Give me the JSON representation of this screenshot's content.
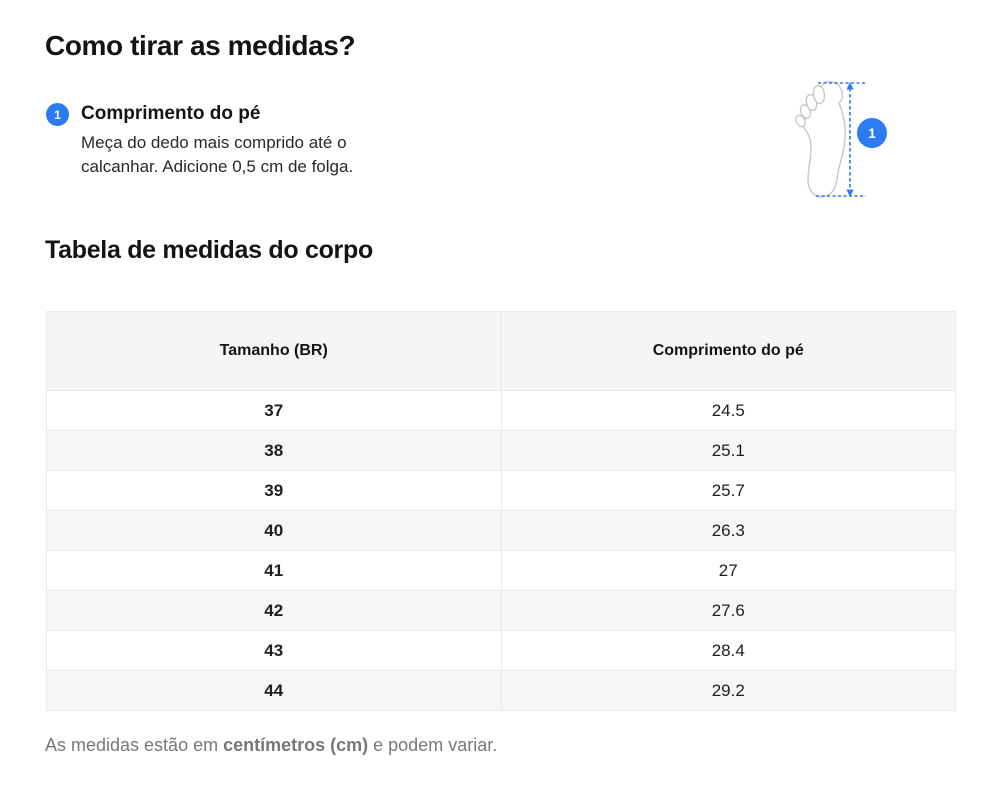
{
  "page": {
    "title": "Como tirar as medidas?",
    "section_title": "Tabela de medidas do corpo",
    "footnote": {
      "prefix": "As medidas estão em ",
      "bold": "centímetros (cm)",
      "suffix": " e podem variar."
    }
  },
  "step": {
    "number": "1",
    "label": "Comprimento do pé",
    "description_line1": "Meça do dedo mais comprido até o",
    "description_line2": "calcanhar. Adicione 0,5 cm de folga."
  },
  "figure": {
    "icon": "foot-sole-outline-with-vertical-measure-arrow",
    "marker_number": "1"
  },
  "table": {
    "headers": [
      "Tamanho (BR)",
      "Comprimento do pé"
    ],
    "rows": [
      {
        "size": "37",
        "length": "24.5"
      },
      {
        "size": "38",
        "length": "25.1"
      },
      {
        "size": "39",
        "length": "25.7"
      },
      {
        "size": "40",
        "length": "26.3"
      },
      {
        "size": "41",
        "length": "27"
      },
      {
        "size": "42",
        "length": "27.6"
      },
      {
        "size": "43",
        "length": "28.4"
      },
      {
        "size": "44",
        "length": "29.2"
      }
    ]
  },
  "colors": {
    "accent_blue": "#2b7bf3",
    "table_header_bg": "#f5f5f5",
    "table_row_alt_bg": "#f6f6f6",
    "table_border": "#e9e9e9",
    "text_primary": "#141414",
    "text_muted": "#77787b",
    "foot_outline_gray": "#c5c9cd"
  }
}
